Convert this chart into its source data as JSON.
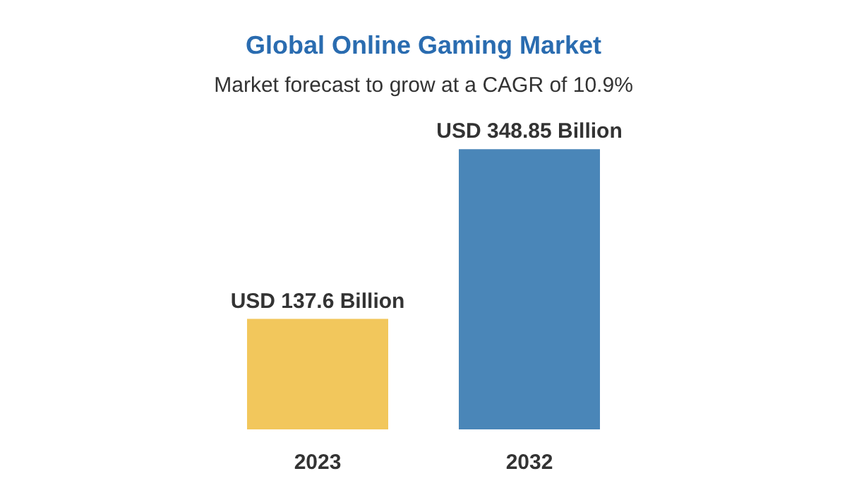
{
  "chart_data": {
    "type": "bar",
    "title": "Global Online Gaming Market",
    "subtitle": "Market forecast to grow at a CAGR of 10.9%",
    "categories": [
      "2023",
      "2032"
    ],
    "values": [
      137.6,
      348.85
    ],
    "colors": [
      "#f2c75c",
      "#4a86b8"
    ],
    "value_labels": [
      "USD 137.6 Billion",
      "USD 348.85 Billion"
    ]
  }
}
